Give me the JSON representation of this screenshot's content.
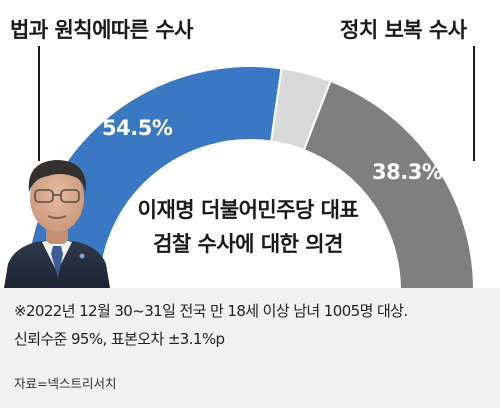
{
  "chart_data": {
    "type": "pie",
    "variant": "semi-donut",
    "center_text": [
      "이재명 더불어민주당 대표",
      "검찰 수사에 대한 의견"
    ],
    "slices": [
      {
        "label": "법과 원칙에따른 수사",
        "value": 54.5,
        "value_label": "54.5%",
        "color": "#3b78c4"
      },
      {
        "value": 7.2,
        "color": "#d9d9d9"
      },
      {
        "label": "정치 보복 수사",
        "value": 38.3,
        "value_label": "38.3%",
        "color": "#7f7f7f"
      }
    ]
  },
  "footer": {
    "note_line1": "※2022년 12월 30~31일 전국 만 18세 이상 남녀 1005명 대상.",
    "note_line2": "신뢰수준 95%, 표본오차 ±3.1%p",
    "source": "자료=넥스트리서치"
  },
  "photo": {
    "alt": "이재명 대표 사진"
  }
}
